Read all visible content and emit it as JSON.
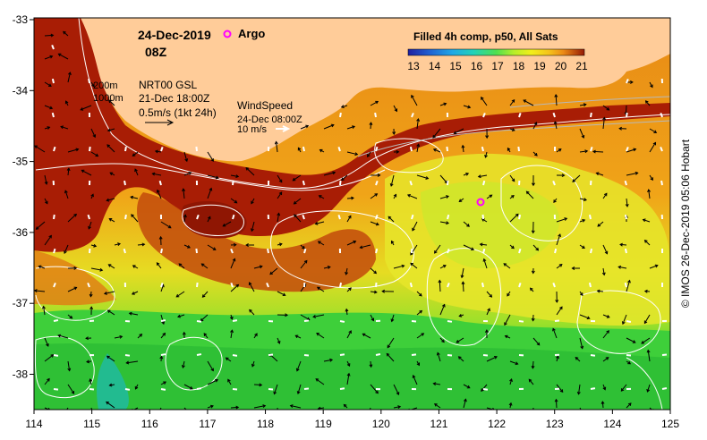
{
  "title": {
    "date": "24-Dec-2019",
    "time": "08Z"
  },
  "legend": {
    "argo_label": "Argo",
    "argo_color": "#ff00ff",
    "colorbar_title": "Filled 4h comp, p50, All Sats",
    "colorbar_ticks": [
      "13",
      "14",
      "15",
      "16",
      "17",
      "18",
      "19",
      "20",
      "21"
    ],
    "colorbar_colors": [
      "#1f1fa0",
      "#1f5fd0",
      "#1fa7e6",
      "#22d2b8",
      "#4fe04f",
      "#b7ee2a",
      "#f2ee1a",
      "#f5c21a",
      "#ec8a16",
      "#c43e0b",
      "#951a05"
    ]
  },
  "contours": {
    "depth_200": "200m",
    "depth_1000": "1000m"
  },
  "currents": {
    "source": "NRT00 GSL",
    "date": "21-Dec 18:00Z",
    "scale": "0.5m/s (1kt 24h)"
  },
  "wind": {
    "label": "WindSpeed",
    "date": "24-Dec 08:00Z",
    "scale": "10 m/s"
  },
  "axes": {
    "x_ticks": [
      "114",
      "115",
      "116",
      "117",
      "118",
      "119",
      "120",
      "121",
      "122",
      "123",
      "124",
      "125"
    ],
    "y_ticks": [
      "-33",
      "-34",
      "-35",
      "-36",
      "-37",
      "-38"
    ]
  },
  "argo_float": {
    "lon": 121.75,
    "lat": -35.6
  },
  "credit": "© IMOS 26-Dec-2019 05:06 Hobart",
  "colors": {
    "land": "#ffcc99",
    "warm": "#a81d05",
    "orange": "#ef9b18",
    "yellow": "#f2e62a",
    "green": "#3ecf3a",
    "contour": "#ffffff"
  }
}
